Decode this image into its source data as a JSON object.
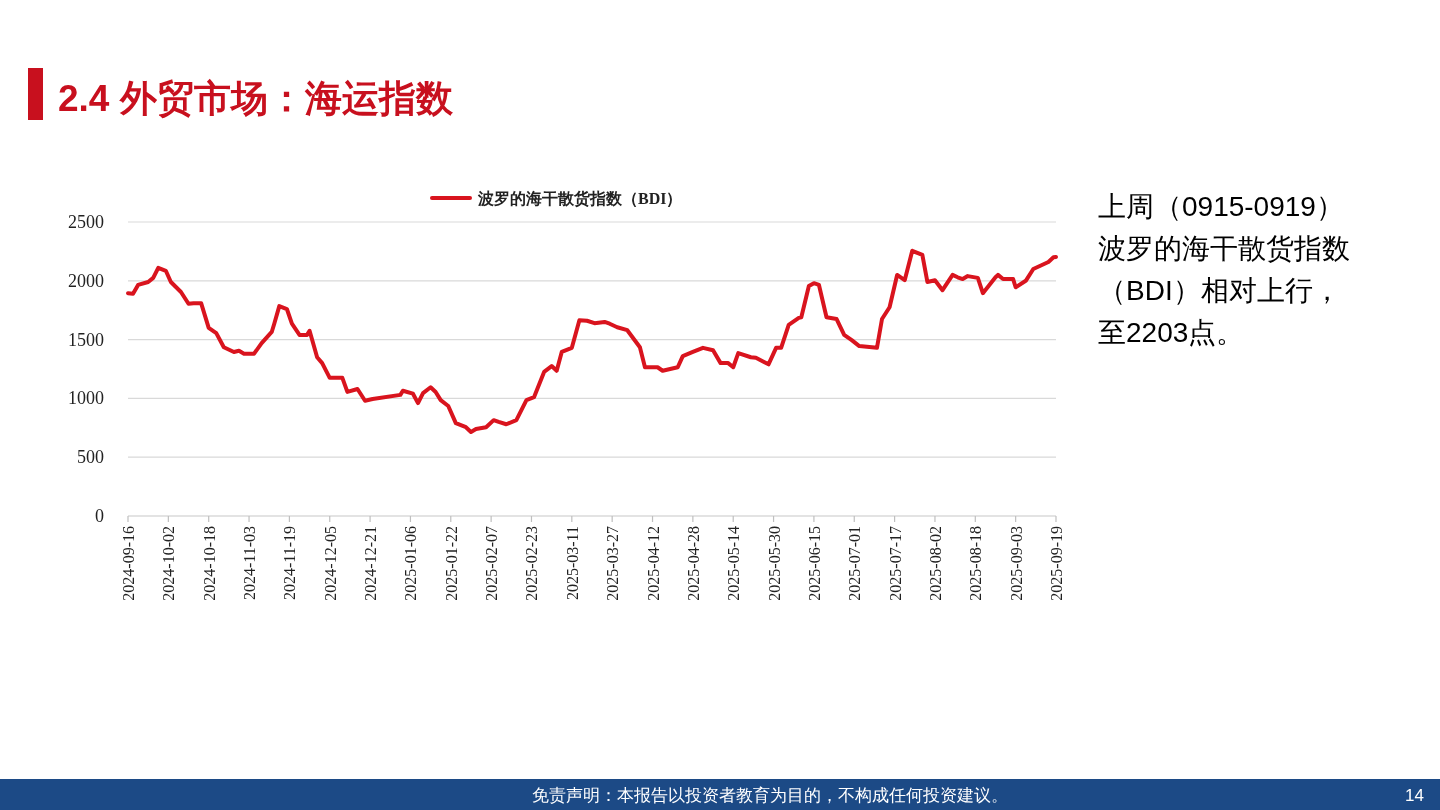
{
  "chart_data": {
    "type": "line",
    "title": "2.4 外贸市场：海运指数",
    "x": [
      "2024-09-16",
      "2024-09-18",
      "2024-09-20",
      "2024-09-24",
      "2024-09-26",
      "2024-09-28",
      "2024-10-01",
      "2024-10-03",
      "2024-10-07",
      "2024-10-10",
      "2024-10-12",
      "2024-10-15",
      "2024-10-18",
      "2024-10-21",
      "2024-10-24",
      "2024-10-28",
      "2024-10-30",
      "2024-11-01",
      "2024-11-05",
      "2024-11-08",
      "2024-11-12",
      "2024-11-13",
      "2024-11-15",
      "2024-11-18",
      "2024-11-20",
      "2024-11-23",
      "2024-11-26",
      "2024-11-27",
      "2024-11-30",
      "2024-12-02",
      "2024-12-05",
      "2024-12-10",
      "2024-12-12",
      "2024-12-16",
      "2024-12-19",
      "2024-12-22",
      "2025-01-02",
      "2025-01-03",
      "2025-01-07",
      "2025-01-09",
      "2025-01-11",
      "2025-01-14",
      "2025-01-16",
      "2025-01-18",
      "2025-01-21",
      "2025-01-24",
      "2025-01-28",
      "2025-01-30",
      "2025-02-01",
      "2025-02-05",
      "2025-02-08",
      "2025-02-10",
      "2025-02-13",
      "2025-02-17",
      "2025-02-21",
      "2025-02-24",
      "2025-02-28",
      "2025-03-03",
      "2025-03-05",
      "2025-03-07",
      "2025-03-11",
      "2025-03-14",
      "2025-03-17",
      "2025-03-20",
      "2025-03-24",
      "2025-03-26",
      "2025-03-29",
      "2025-04-02",
      "2025-04-07",
      "2025-04-09",
      "2025-04-14",
      "2025-04-16",
      "2025-04-22",
      "2025-04-24",
      "2025-04-28",
      "2025-05-02",
      "2025-05-06",
      "2025-05-09",
      "2025-05-12",
      "2025-05-14",
      "2025-05-16",
      "2025-05-21",
      "2025-05-23",
      "2025-05-28",
      "2025-05-31",
      "2025-06-02",
      "2025-06-05",
      "2025-06-09",
      "2025-06-10",
      "2025-06-13",
      "2025-06-15",
      "2025-06-17",
      "2025-06-20",
      "2025-06-24",
      "2025-06-27",
      "2025-06-30",
      "2025-07-03",
      "2025-07-08",
      "2025-07-10",
      "2025-07-12",
      "2025-07-15",
      "2025-07-18",
      "2025-07-21",
      "2025-07-24",
      "2025-07-28",
      "2025-07-30",
      "2025-08-02",
      "2025-08-05",
      "2025-08-09",
      "2025-08-11",
      "2025-08-13",
      "2025-08-15",
      "2025-08-19",
      "2025-08-21",
      "2025-08-26",
      "2025-08-27",
      "2025-08-29",
      "2025-09-02",
      "2025-09-03",
      "2025-09-07",
      "2025-09-10",
      "2025-09-16",
      "2025-09-18",
      "2025-09-19"
    ],
    "series": [
      {
        "name": "波罗的海干散货指数（BDI）",
        "color": "#d9141e",
        "values": [
          1895,
          1890,
          1965,
          1990,
          2025,
          2110,
          2085,
          1990,
          1905,
          1805,
          1810,
          1810,
          1600,
          1555,
          1435,
          1395,
          1405,
          1380,
          1380,
          1470,
          1565,
          1635,
          1785,
          1760,
          1635,
          1540,
          1540,
          1575,
          1350,
          1300,
          1175,
          1175,
          1055,
          1080,
          980,
          995,
          1030,
          1065,
          1040,
          960,
          1045,
          1095,
          1055,
          985,
          935,
          790,
          755,
          715,
          740,
          755,
          815,
          800,
          780,
          815,
          985,
          1010,
          1225,
          1275,
          1235,
          1395,
          1430,
          1665,
          1660,
          1640,
          1650,
          1635,
          1605,
          1580,
          1435,
          1265,
          1265,
          1235,
          1265,
          1360,
          1395,
          1430,
          1410,
          1300,
          1300,
          1265,
          1385,
          1350,
          1345,
          1290,
          1430,
          1430,
          1625,
          1685,
          1690,
          1955,
          1980,
          1965,
          1690,
          1675,
          1540,
          1495,
          1445,
          1435,
          1430,
          1675,
          1775,
          2050,
          2005,
          2255,
          2220,
          1990,
          2005,
          1920,
          2050,
          2030,
          2015,
          2040,
          2025,
          1895,
          2030,
          2050,
          2015,
          2015,
          1945,
          2000,
          2100,
          2160,
          2200,
          2203
        ]
      }
    ],
    "xlim": [
      "2024-09-16",
      "2025-09-19"
    ],
    "xticks": [
      "2024-09-16",
      "2024-10-02",
      "2024-10-18",
      "2024-11-03",
      "2024-11-19",
      "2024-12-05",
      "2024-12-21",
      "2025-01-06",
      "2025-01-22",
      "2025-02-07",
      "2025-02-23",
      "2025-03-11",
      "2025-03-27",
      "2025-04-12",
      "2025-04-28",
      "2025-05-14",
      "2025-05-30",
      "2025-06-15",
      "2025-07-01",
      "2025-07-17",
      "2025-08-02",
      "2025-08-18",
      "2025-09-03",
      "2025-09-19"
    ],
    "ylim": [
      0,
      2500
    ],
    "yticks": [
      0,
      500,
      1000,
      1500,
      2000,
      2500
    ],
    "grid": "y",
    "legend": "top",
    "annotations": [
      "上周（0915-0919）波罗的海干散货指数（BDI）相对上行，至2203点。",
      "免责声明：本报告以投资者教育为目的，不构成任何投资建议。",
      "14"
    ]
  }
}
